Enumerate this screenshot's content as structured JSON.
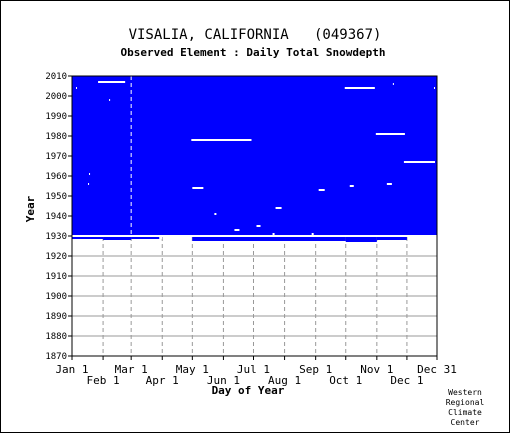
{
  "chart_data": {
    "type": "heatmap",
    "title": "VISALIA, CALIFORNIA   (049367)",
    "subtitle": "Observed Element : Daily Total Snowdepth",
    "xlabel": "Day of Year",
    "ylabel": "Year",
    "xlim": [
      1,
      365
    ],
    "ylim": [
      1870,
      2010
    ],
    "x_ticks_top": [
      {
        "label": "Jan 1",
        "day": 1
      },
      {
        "label": "Mar 1",
        "day": 60
      },
      {
        "label": "May 1",
        "day": 121
      },
      {
        "label": "Jul 1",
        "day": 182
      },
      {
        "label": "Sep 1",
        "day": 244
      },
      {
        "label": "Nov 1",
        "day": 305
      },
      {
        "label": "Dec 31",
        "day": 365
      }
    ],
    "x_ticks_bottom": [
      {
        "label": "Feb 1",
        "day": 32
      },
      {
        "label": "Apr 1",
        "day": 91
      },
      {
        "label": "Jun 1",
        "day": 152
      },
      {
        "label": "Aug 1",
        "day": 213
      },
      {
        "label": "Oct 1",
        "day": 274
      },
      {
        "label": "Dec 1",
        "day": 335
      }
    ],
    "y_ticks": [
      1870,
      1880,
      1890,
      1900,
      1910,
      1920,
      1930,
      1940,
      1950,
      1960,
      1970,
      1980,
      1990,
      2000,
      2010
    ],
    "grid": true,
    "data_color": "#0000ff",
    "series": [
      {
        "values": [
          {
            "start_day": 1,
            "end_day": 365,
            "start_year": 1930,
            "end_year": 2010
          },
          {
            "start_day": 1,
            "end_day": 32,
            "start_year": 1928.5,
            "end_year": 1930
          },
          {
            "start_day": 32,
            "end_day": 60,
            "start_year": 1928,
            "end_year": 1930
          },
          {
            "start_day": 60,
            "end_day": 91,
            "start_year": 1928.5,
            "end_year": 1930
          },
          {
            "start_day": 91,
            "end_day": 121,
            "start_year": 1929.5,
            "end_year": 1930
          },
          {
            "start_day": 121,
            "end_day": 274,
            "start_year": 1927.5,
            "end_year": 1930
          },
          {
            "start_day": 274,
            "end_day": 305,
            "start_year": 1927,
            "end_year": 1930
          },
          {
            "start_day": 305,
            "end_day": 335,
            "start_year": 1928,
            "end_year": 1930
          }
        ]
      }
    ],
    "missing_segments": [
      {
        "start_day": 27,
        "end_day": 54,
        "year": 2007
      },
      {
        "start_day": 120,
        "end_day": 180,
        "year": 1978
      },
      {
        "start_day": 273,
        "end_day": 303,
        "year": 2004
      },
      {
        "start_day": 304,
        "end_day": 333,
        "year": 1981
      },
      {
        "start_day": 332,
        "end_day": 363,
        "year": 1967
      },
      {
        "start_day": 1,
        "end_day": 365,
        "year": 1930
      },
      {
        "start_day": 121,
        "end_day": 132,
        "year": 1954
      },
      {
        "start_day": 247,
        "end_day": 253,
        "year": 1953
      },
      {
        "start_day": 278,
        "end_day": 282,
        "year": 1955
      },
      {
        "start_day": 315,
        "end_day": 320,
        "year": 1956
      },
      {
        "start_day": 204,
        "end_day": 210,
        "year": 1944
      },
      {
        "start_day": 185,
        "end_day": 189,
        "year": 1935
      },
      {
        "start_day": 163,
        "end_day": 168,
        "year": 1933
      },
      {
        "start_day": 143,
        "end_day": 145,
        "year": 1941
      },
      {
        "start_day": 88,
        "end_day": 91,
        "year": 1929
      },
      {
        "start_day": 5,
        "end_day": 6,
        "year": 2004
      },
      {
        "start_day": 18,
        "end_day": 19,
        "year": 1961
      },
      {
        "start_day": 17,
        "end_day": 18,
        "year": 1956
      },
      {
        "start_day": 38,
        "end_day": 39,
        "year": 1998
      },
      {
        "start_day": 321,
        "end_day": 322,
        "year": 2006
      },
      {
        "start_day": 362,
        "end_day": 363,
        "year": 2004
      },
      {
        "start_day": 201,
        "end_day": 203,
        "year": 1931
      },
      {
        "start_day": 240,
        "end_day": 242,
        "year": 1931
      }
    ]
  },
  "credit": "Western\nRegional\nClimate\nCenter"
}
